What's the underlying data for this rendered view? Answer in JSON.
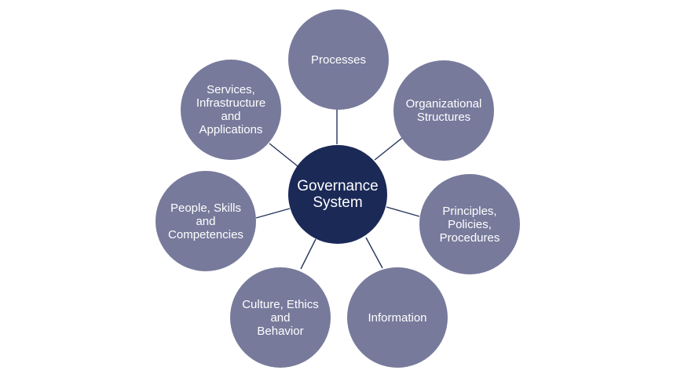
{
  "diagram": {
    "center": {
      "label": "Governance\nSystem"
    },
    "components": [
      {
        "id": "processes",
        "label": "Processes"
      },
      {
        "id": "organizational-structures",
        "label": "Organizational\nStructures"
      },
      {
        "id": "principles-policies-procedures",
        "label": "Principles,\nPolicies,\nProcedures"
      },
      {
        "id": "information",
        "label": "Information"
      },
      {
        "id": "culture-ethics-behavior",
        "label": "Culture, Ethics\nand\nBehavior"
      },
      {
        "id": "people-skills-competencies",
        "label": "People, Skills\nand\nCompetencies"
      },
      {
        "id": "services-infrastructure-applications",
        "label": "Services,\nInfrastructure\nand\nApplications"
      }
    ],
    "colors": {
      "center": "#1b2957",
      "components": "#777a9b",
      "connectors": "#27345e",
      "text": "#ffffff"
    }
  }
}
